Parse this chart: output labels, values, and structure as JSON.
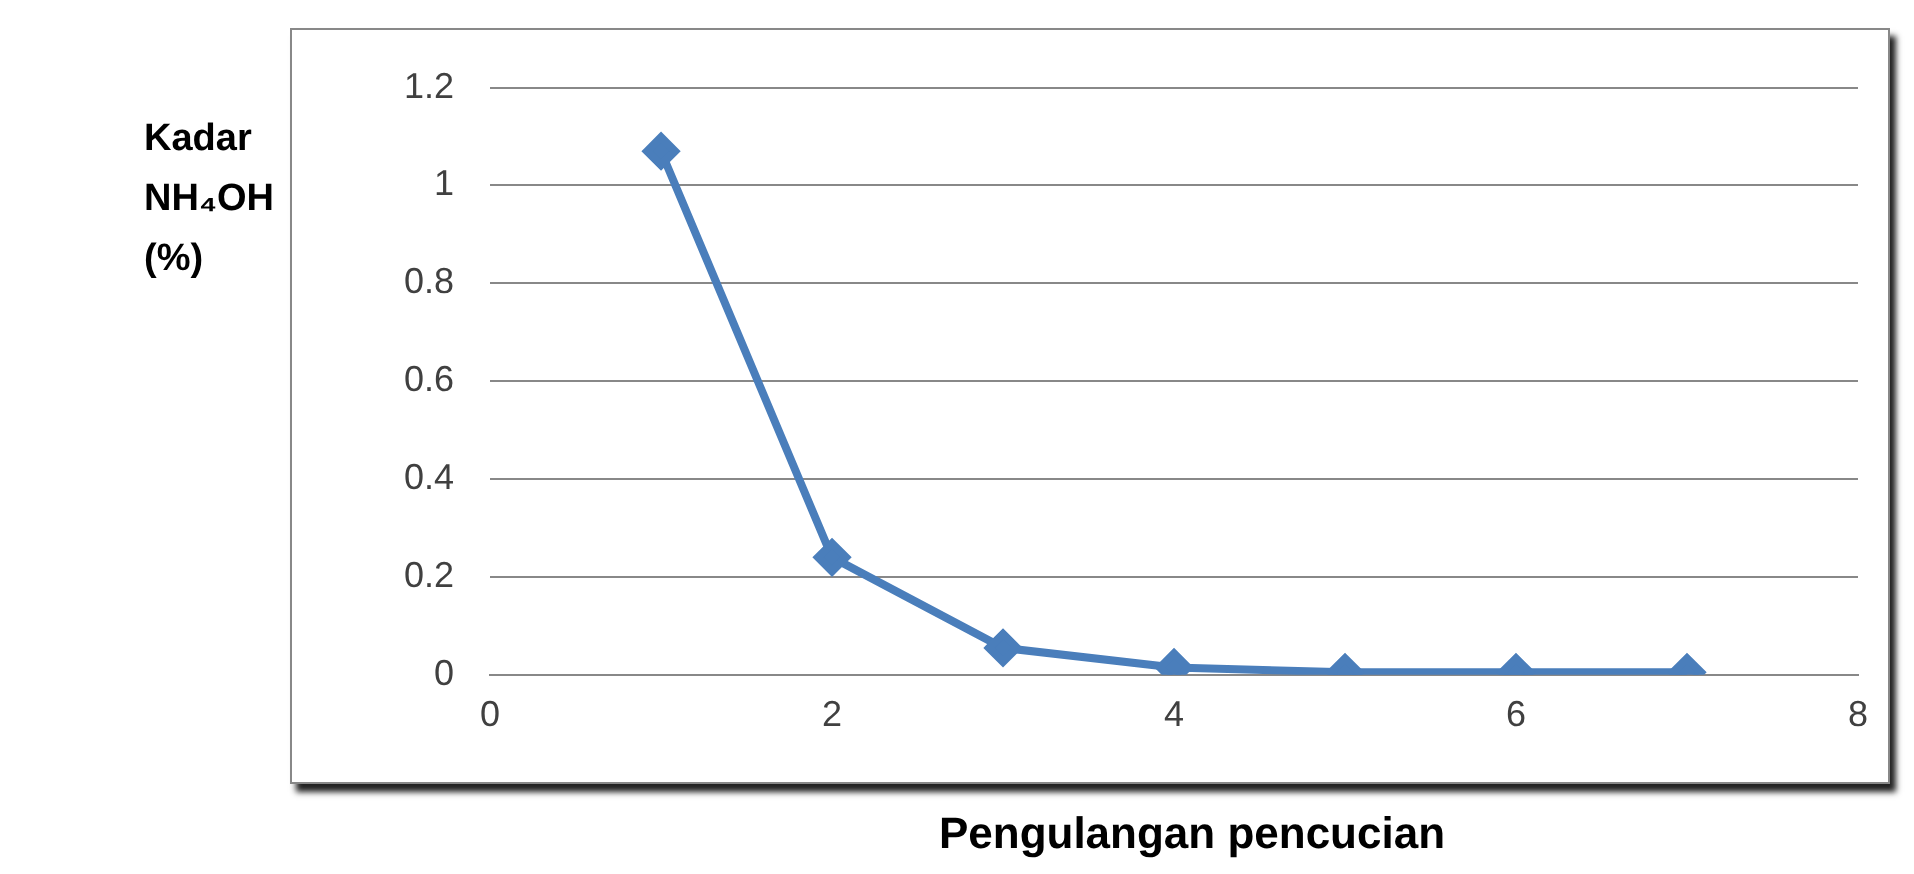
{
  "chart_data": {
    "type": "line",
    "xlabel": "Pengulangan pencucian",
    "ylabel": "Kadar NH₄OH (%)",
    "x": [
      1,
      2,
      3,
      4,
      5,
      6,
      7
    ],
    "series": [
      {
        "color": "#4a7ebb",
        "values": [
          1.07,
          0.24,
          0.055,
          0.015,
          0.005,
          0.005,
          0.005
        ]
      }
    ],
    "xlim": [
      0,
      8
    ],
    "xticks": [
      0,
      2,
      4,
      6,
      8
    ],
    "ylim": [
      0,
      1.2
    ],
    "yticks": [
      0,
      0.2,
      0.4,
      0.6,
      0.8,
      1,
      1.2
    ],
    "grid": "y",
    "legend": false,
    "marker": "diamond",
    "line_style": "solid"
  }
}
